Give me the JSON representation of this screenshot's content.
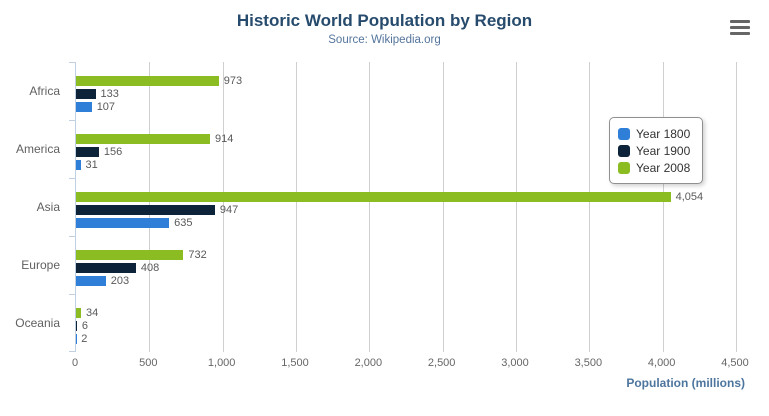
{
  "chart": {
    "title": "Historic World Population by Region",
    "subtitle": "Source: Wikipedia.org",
    "title_color": "#274b6d",
    "subtitle_color": "#55759c",
    "context_menu_icon": "hamburger-icon"
  },
  "chart_data": {
    "type": "bar",
    "orientation": "horizontal",
    "title": "Historic World Population by Region",
    "subtitle": "Source: Wikipedia.org",
    "categories": [
      "Africa",
      "America",
      "Asia",
      "Europe",
      "Oceania"
    ],
    "series": [
      {
        "name": "Year 1800",
        "color": "#2f7ed8",
        "values": [
          107,
          31,
          635,
          203,
          2
        ],
        "labels": [
          "107",
          "31",
          "635",
          "203",
          "2"
        ]
      },
      {
        "name": "Year 1900",
        "color": "#0d233a",
        "values": [
          133,
          156,
          947,
          408,
          6
        ],
        "labels": [
          "133",
          "156",
          "947",
          "408",
          "6"
        ]
      },
      {
        "name": "Year 2008",
        "color": "#8bbc21",
        "values": [
          973,
          914,
          4054,
          732,
          34
        ],
        "labels": [
          "973",
          "914",
          "4,054",
          "732",
          "34"
        ]
      }
    ],
    "xlabel": "Population (millions)",
    "ylabel": "",
    "xlim": [
      0,
      4500
    ],
    "xticks": [
      "0",
      "500",
      "1,000",
      "1,500",
      "2,000",
      "2,500",
      "3,000",
      "3,500",
      "4,000",
      "4,500"
    ],
    "grid": true,
    "legend_position": "right",
    "legend_entries": [
      "Year 1800",
      "Year 1900",
      "Year 2008"
    ],
    "axis_line_color": "#c0d0e0",
    "gridline_color": "#cfcfcf"
  }
}
